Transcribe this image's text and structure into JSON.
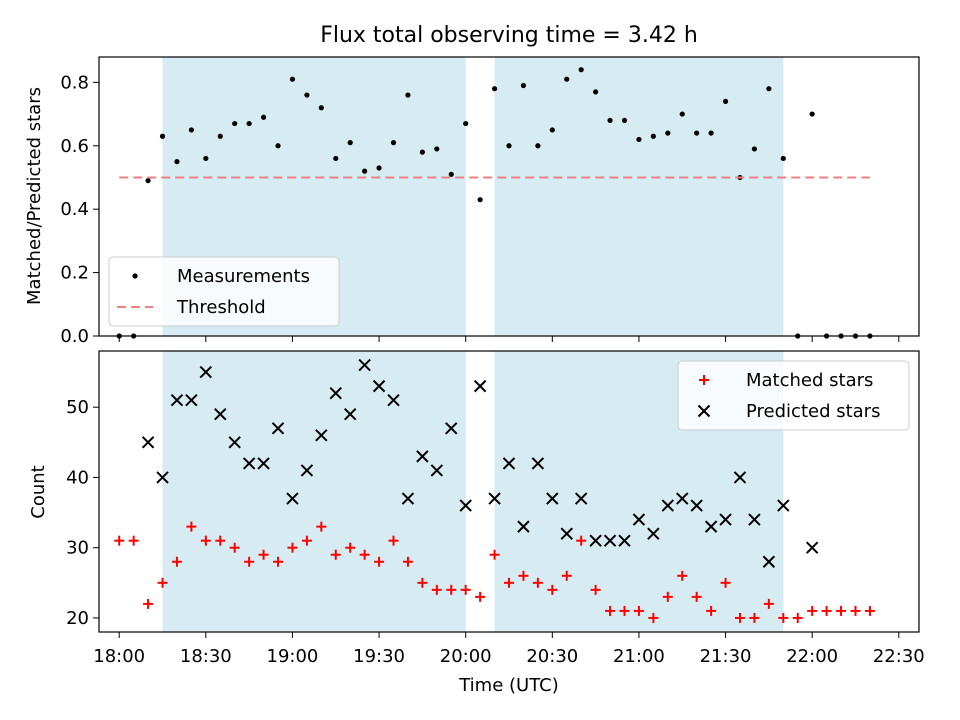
{
  "chart_data": [
    {
      "type": "scatter",
      "title": "Flux total observing time = 3.42 h",
      "xlabel": "",
      "ylabel": "Matched/Predicted stars",
      "xlim": [
        "17:53",
        "22:37"
      ],
      "ylim": [
        0,
        0.88
      ],
      "yticks": [
        "0.0",
        "0.2",
        "0.4",
        "0.6",
        "0.8"
      ],
      "shaded_intervals": [
        [
          "18:15",
          "20:00"
        ],
        [
          "20:10",
          "21:50"
        ]
      ],
      "legend_position": "lower-left",
      "series": [
        {
          "name": "Measurements",
          "style": "dots",
          "color": "#000000",
          "x": [
            "18:00",
            "18:05",
            "18:10",
            "18:15",
            "18:20",
            "18:25",
            "18:30",
            "18:35",
            "18:40",
            "18:45",
            "18:50",
            "18:55",
            "19:00",
            "19:05",
            "19:10",
            "19:15",
            "19:20",
            "19:25",
            "19:30",
            "19:35",
            "19:40",
            "19:45",
            "19:50",
            "19:55",
            "20:00",
            "20:05",
            "20:10",
            "20:15",
            "20:20",
            "20:25",
            "20:30",
            "20:35",
            "20:40",
            "20:45",
            "20:50",
            "20:55",
            "21:00",
            "21:05",
            "21:10",
            "21:15",
            "21:20",
            "21:25",
            "21:30",
            "21:35",
            "21:40",
            "21:45",
            "21:50",
            "21:55",
            "22:00",
            "22:05",
            "22:10",
            "22:15",
            "22:20"
          ],
          "y": [
            0.0,
            0.0,
            0.49,
            0.63,
            0.55,
            0.65,
            0.56,
            0.63,
            0.67,
            0.67,
            0.69,
            0.6,
            0.81,
            0.76,
            0.72,
            0.56,
            0.61,
            0.52,
            0.53,
            0.61,
            0.76,
            0.58,
            0.59,
            0.51,
            0.67,
            0.43,
            0.78,
            0.6,
            0.79,
            0.6,
            0.65,
            0.81,
            0.84,
            0.77,
            0.68,
            0.68,
            0.62,
            0.63,
            0.64,
            0.7,
            0.64,
            0.64,
            0.74,
            0.5,
            0.59,
            0.78,
            0.56,
            0.0,
            0.7,
            0.0,
            0.0,
            0.0,
            0.0
          ]
        },
        {
          "name": "Threshold",
          "style": "dashed-line",
          "color": "#f08080",
          "x": [
            "18:00",
            "22:20"
          ],
          "y": [
            0.5,
            0.5
          ]
        }
      ]
    },
    {
      "type": "scatter",
      "title": "",
      "xlabel": "Time (UTC)",
      "ylabel": "Count",
      "xlim": [
        "17:53",
        "22:37"
      ],
      "ylim": [
        18,
        58
      ],
      "yticks": [
        "20",
        "30",
        "40",
        "50"
      ],
      "xticks": [
        "18:00",
        "18:30",
        "19:00",
        "19:30",
        "20:00",
        "20:30",
        "21:00",
        "21:30",
        "22:00",
        "22:30"
      ],
      "shaded_intervals": [
        [
          "18:15",
          "20:00"
        ],
        [
          "20:10",
          "21:50"
        ]
      ],
      "legend_position": "upper-right",
      "series": [
        {
          "name": "Matched stars",
          "style": "plus",
          "color": "#ff0000",
          "x": [
            "18:00",
            "18:05",
            "18:10",
            "18:15",
            "18:20",
            "18:25",
            "18:30",
            "18:35",
            "18:40",
            "18:45",
            "18:50",
            "18:55",
            "19:00",
            "19:05",
            "19:10",
            "19:15",
            "19:20",
            "19:25",
            "19:30",
            "19:35",
            "19:40",
            "19:45",
            "19:50",
            "19:55",
            "20:00",
            "20:05",
            "20:10",
            "20:15",
            "20:20",
            "20:25",
            "20:30",
            "20:35",
            "20:40",
            "20:45",
            "20:50",
            "20:55",
            "21:00",
            "21:05",
            "21:10",
            "21:15",
            "21:20",
            "21:25",
            "21:30",
            "21:35",
            "21:40",
            "21:45",
            "21:50",
            "21:55",
            "22:00",
            "22:05",
            "22:10",
            "22:15",
            "22:20"
          ],
          "y": [
            31,
            31,
            22,
            25,
            28,
            33,
            31,
            31,
            30,
            28,
            29,
            28,
            30,
            31,
            33,
            29,
            30,
            29,
            28,
            31,
            28,
            25,
            24,
            24,
            24,
            23,
            29,
            25,
            26,
            25,
            24,
            26,
            31,
            24,
            21,
            21,
            21,
            20,
            23,
            26,
            23,
            21,
            25,
            20,
            20,
            22,
            20,
            20,
            21,
            21,
            21,
            21,
            21
          ]
        },
        {
          "name": "Predicted stars",
          "style": "x",
          "color": "#000000",
          "x": [
            "18:10",
            "18:15",
            "18:20",
            "18:25",
            "18:30",
            "18:35",
            "18:40",
            "18:45",
            "18:50",
            "18:55",
            "19:00",
            "19:05",
            "19:10",
            "19:15",
            "19:20",
            "19:25",
            "19:30",
            "19:35",
            "19:40",
            "19:45",
            "19:50",
            "19:55",
            "20:00",
            "20:05",
            "20:10",
            "20:15",
            "20:20",
            "20:25",
            "20:30",
            "20:35",
            "20:40",
            "20:45",
            "20:50",
            "20:55",
            "21:00",
            "21:05",
            "21:10",
            "21:15",
            "21:20",
            "21:25",
            "21:30",
            "21:35",
            "21:40",
            "21:45",
            "21:50",
            "22:00"
          ],
          "y": [
            45,
            40,
            51,
            51,
            55,
            49,
            45,
            42,
            42,
            47,
            37,
            41,
            46,
            52,
            49,
            56,
            53,
            51,
            37,
            43,
            41,
            47,
            36,
            53,
            37,
            42,
            33,
            42,
            37,
            32,
            37,
            31,
            31,
            31,
            34,
            32,
            36,
            37,
            36,
            33,
            34,
            40,
            34,
            28,
            36,
            30
          ]
        }
      ]
    }
  ]
}
